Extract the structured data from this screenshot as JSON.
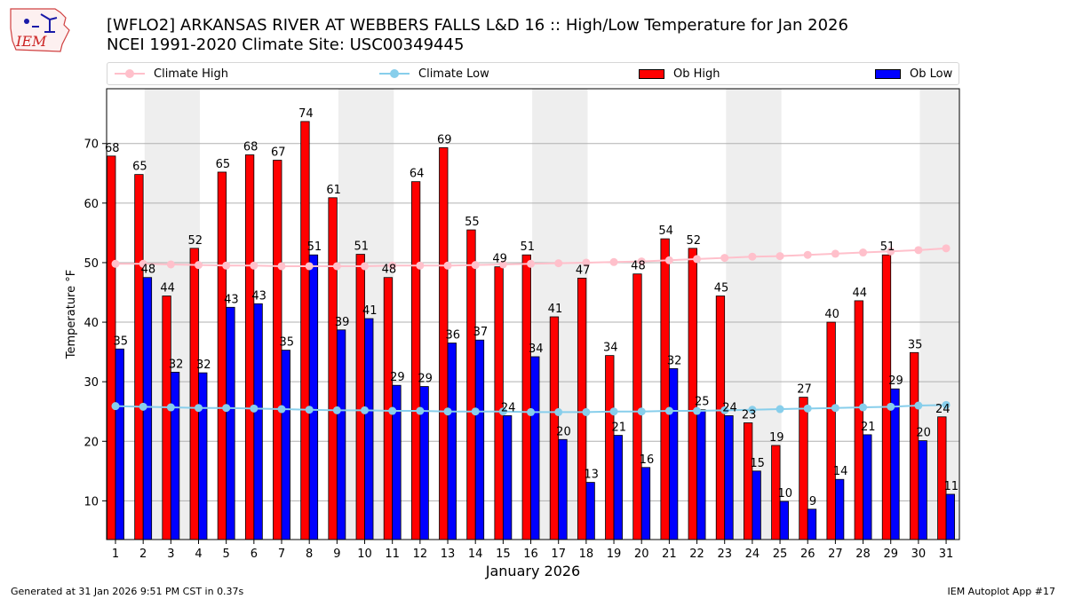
{
  "header": {
    "title_line1": "[WFLO2] ARKANSAS RIVER  AT WEBBERS FALLS L&D 16 :: High/Low Temperature for Jan 2026",
    "title_line2": "NCEI 1991-2020 Climate Site: USC00349445",
    "logo_text": "IEM"
  },
  "legend": {
    "climate_high": "Climate High",
    "climate_low": "Climate Low",
    "ob_high": "Ob High",
    "ob_low": "Ob Low"
  },
  "footer": {
    "generated": "Generated at 31 Jan 2026 9:51 PM CST in 0.37s",
    "app": "IEM Autoplot App #17"
  },
  "colors": {
    "ob_high": "#ff0000",
    "ob_low": "#0000ff",
    "climate_high": "#ffc0cb",
    "climate_low": "#87ceeb",
    "weekend_band": "#eeeeee",
    "grid": "#b0b0b0"
  },
  "chart_data": {
    "type": "bar",
    "xlabel": "January 2026",
    "ylabel": "Temperature °F",
    "ylim": [
      3.5,
      79.2
    ],
    "yticks": [
      10,
      20,
      30,
      40,
      50,
      60,
      70
    ],
    "grid": "horizontal",
    "legend_position": "top",
    "categories": [
      "1",
      "2",
      "3",
      "4",
      "5",
      "6",
      "7",
      "8",
      "9",
      "10",
      "11",
      "12",
      "13",
      "14",
      "15",
      "16",
      "17",
      "18",
      "19",
      "20",
      "21",
      "22",
      "23",
      "24",
      "25",
      "26",
      "27",
      "28",
      "29",
      "30",
      "31"
    ],
    "shaded_days": [
      3,
      10,
      17,
      24,
      31
    ],
    "series": [
      {
        "name": "Ob High",
        "kind": "bar",
        "values": [
          68,
          65,
          44,
          52,
          65,
          68,
          67,
          74,
          61,
          51,
          48,
          64,
          69,
          55,
          49,
          51,
          41,
          47,
          34,
          48,
          54,
          52,
          45,
          23,
          19,
          27,
          40,
          44,
          51,
          35,
          24
        ],
        "plot_values": [
          67.9,
          64.8,
          44.4,
          52.4,
          65.2,
          68.1,
          67.2,
          73.7,
          60.9,
          51.4,
          47.5,
          63.6,
          69.3,
          55.5,
          49.3,
          51.3,
          40.9,
          47.4,
          34.4,
          48.1,
          54.0,
          52.4,
          44.4,
          23.1,
          19.3,
          27.4,
          40.0,
          43.6,
          51.3,
          34.9,
          24.1
        ]
      },
      {
        "name": "Ob Low",
        "kind": "bar",
        "values": [
          35,
          48,
          32,
          32,
          43,
          43,
          35,
          51,
          39,
          41,
          29,
          29,
          36,
          37,
          24,
          34,
          20,
          13,
          21,
          16,
          32,
          25,
          24,
          15,
          10,
          9,
          14,
          21,
          29,
          20,
          11
        ],
        "plot_values": [
          35.5,
          47.5,
          31.6,
          31.5,
          42.5,
          43.1,
          35.3,
          51.3,
          38.7,
          40.6,
          29.4,
          29.2,
          36.5,
          37.0,
          24.3,
          34.2,
          20.3,
          13.1,
          21.0,
          15.6,
          32.2,
          25.3,
          24.3,
          15.0,
          9.9,
          8.6,
          13.6,
          21.1,
          28.8,
          20.1,
          11.1
        ]
      },
      {
        "name": "Climate High",
        "kind": "line",
        "values": [
          49.8,
          49.8,
          49.7,
          49.6,
          49.5,
          49.5,
          49.4,
          49.4,
          49.4,
          49.4,
          49.5,
          49.5,
          49.5,
          49.6,
          49.7,
          49.8,
          49.9,
          50.0,
          50.1,
          50.2,
          50.4,
          50.6,
          50.8,
          51.0,
          51.1,
          51.3,
          51.5,
          51.7,
          51.9,
          52.1,
          52.4
        ]
      },
      {
        "name": "Climate Low",
        "kind": "line",
        "values": [
          25.9,
          25.8,
          25.7,
          25.6,
          25.6,
          25.5,
          25.4,
          25.3,
          25.2,
          25.2,
          25.1,
          25.1,
          25.0,
          25.0,
          25.0,
          24.9,
          24.9,
          24.9,
          25.0,
          25.0,
          25.1,
          25.1,
          25.2,
          25.3,
          25.4,
          25.5,
          25.6,
          25.7,
          25.8,
          26.0,
          26.1
        ]
      }
    ]
  }
}
